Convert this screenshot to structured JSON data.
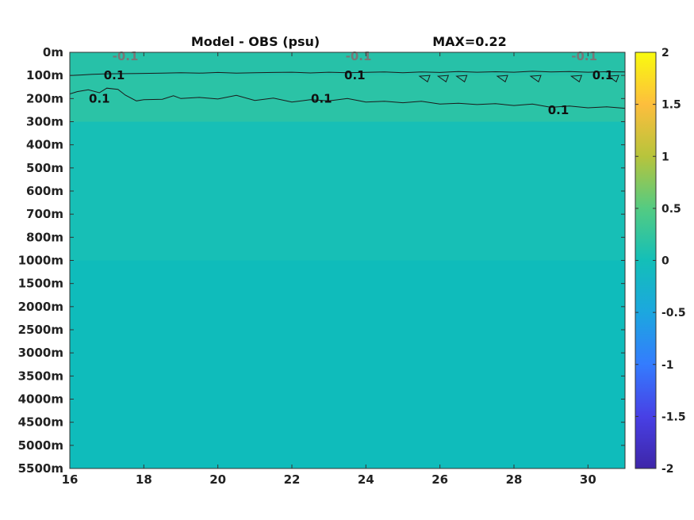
{
  "chart_data": {
    "type": "heatmap",
    "title": "Model - OBS (psu)",
    "max_label": "MAX=0.22",
    "x_ticks": [
      "16",
      "18",
      "20",
      "22",
      "24",
      "26",
      "28",
      "30"
    ],
    "x_tick_values": [
      16,
      18,
      20,
      22,
      24,
      26,
      28,
      30
    ],
    "xlim": [
      16,
      31
    ],
    "y_ticks": [
      "0m",
      "100m",
      "200m",
      "300m",
      "400m",
      "500m",
      "600m",
      "700m",
      "800m",
      "1000m",
      "1500m",
      "2000m",
      "2500m",
      "3000m",
      "3500m",
      "4000m",
      "4500m",
      "5000m",
      "5500m"
    ],
    "y_direction": "reversed",
    "colorbar": {
      "ticks": [
        "2",
        "1.5",
        "1",
        "0.5",
        "0",
        "-0.5",
        "-1",
        "-1.5",
        "-2"
      ],
      "tick_values": [
        2,
        1.5,
        1,
        0.5,
        0,
        -0.5,
        -1,
        -1.5,
        -2
      ],
      "range": [
        -2,
        2
      ],
      "colormap": "parula",
      "stops": [
        "#3e26a8",
        "#4840e5",
        "#347cfe",
        "#1ca7df",
        "#13bfb8",
        "#54cb82",
        "#b7c43c",
        "#fdbe3d",
        "#f9fb0e"
      ]
    },
    "field": {
      "background_color": "#14bcb8",
      "bands": [
        {
          "from_depth": "0m",
          "to_depth": "100m",
          "value": 0.15,
          "color": "#27c1a8"
        },
        {
          "from_depth": "100m",
          "to_depth": "300m",
          "value": 0.12,
          "color": "#2bc3a6"
        },
        {
          "from_depth": "300m",
          "to_depth": "1000m",
          "value": 0.03,
          "color": "#17bfb6"
        },
        {
          "from_depth": "1000m",
          "to_depth": "5500m",
          "value": 0.0,
          "color": "#0fbcbb"
        }
      ]
    },
    "contour_labels": [
      {
        "text": "0.1",
        "x": 17.2,
        "depth": "100m"
      },
      {
        "text": "0.1",
        "x": 16.8,
        "depth": "200m"
      },
      {
        "text": "0.1",
        "x": 23.7,
        "depth": "100m"
      },
      {
        "text": "0.1",
        "x": 22.8,
        "depth": "200m"
      },
      {
        "text": "0.1",
        "x": 30.4,
        "depth": "100m"
      },
      {
        "text": "0.1",
        "x": 29.2,
        "depth": "250m"
      }
    ],
    "negative_contour_labels": [
      {
        "text": "-0.1",
        "x": 17.5,
        "depth": "0m"
      },
      {
        "text": "-0.1",
        "x": 23.8,
        "depth": "0m"
      },
      {
        "text": "-0.1",
        "x": 29.9,
        "depth": "0m"
      }
    ],
    "contours": [
      {
        "level": 0.1,
        "points": [
          [
            16,
            100
          ],
          [
            16.3,
            98
          ],
          [
            16.6,
            95
          ],
          [
            17,
            93
          ],
          [
            17.8,
            92
          ],
          [
            18.5,
            90
          ],
          [
            19,
            88
          ],
          [
            19.5,
            90
          ],
          [
            20,
            87
          ],
          [
            20.5,
            90
          ],
          [
            21,
            88
          ],
          [
            21.5,
            87
          ],
          [
            22,
            86
          ],
          [
            22.5,
            89
          ],
          [
            23,
            86
          ],
          [
            23.5,
            88
          ],
          [
            24.5,
            85
          ],
          [
            25,
            88
          ],
          [
            25.5,
            85
          ],
          [
            26,
            87
          ],
          [
            26.5,
            83
          ],
          [
            27,
            86
          ],
          [
            27.5,
            84
          ],
          [
            28,
            86
          ],
          [
            28.5,
            82
          ],
          [
            29,
            85
          ],
          [
            29.5,
            83
          ],
          [
            30,
            86
          ],
          [
            30.5,
            84
          ],
          [
            31,
            85
          ]
        ]
      },
      {
        "level": 0.1,
        "points": [
          [
            16,
            180
          ],
          [
            16.2,
            170
          ],
          [
            16.5,
            162
          ],
          [
            16.8,
            175
          ],
          [
            17,
            155
          ],
          [
            17.3,
            160
          ],
          [
            17.5,
            185
          ],
          [
            17.8,
            210
          ],
          [
            18,
            205
          ],
          [
            18.5,
            203
          ],
          [
            18.8,
            188
          ],
          [
            19,
            200
          ],
          [
            19.5,
            195
          ],
          [
            20,
            202
          ],
          [
            20.5,
            186
          ],
          [
            21,
            208
          ],
          [
            21.5,
            198
          ],
          [
            22,
            215
          ],
          [
            22.5,
            205
          ],
          [
            23,
            210
          ],
          [
            23.5,
            200
          ],
          [
            24,
            215
          ],
          [
            24.5,
            212
          ],
          [
            25,
            218
          ],
          [
            25.5,
            212
          ],
          [
            26,
            224
          ],
          [
            26.5,
            220
          ],
          [
            27,
            226
          ],
          [
            27.5,
            222
          ],
          [
            28,
            230
          ],
          [
            28.5,
            224
          ],
          [
            29,
            238
          ],
          [
            29.5,
            232
          ],
          [
            30,
            240
          ],
          [
            30.5,
            236
          ],
          [
            31,
            242
          ]
        ]
      }
    ],
    "small_contours": [
      {
        "level": 0.1,
        "x": 25.6,
        "depth": "100m"
      },
      {
        "level": 0.1,
        "x": 26.1,
        "depth": "100m"
      },
      {
        "level": 0.1,
        "x": 26.6,
        "depth": "100m"
      },
      {
        "level": 0.1,
        "x": 27.7,
        "depth": "100m"
      },
      {
        "level": 0.1,
        "x": 28.6,
        "depth": "100m"
      },
      {
        "level": 0.1,
        "x": 29.7,
        "depth": "100m"
      },
      {
        "level": 0.1,
        "x": 30.7,
        "depth": "100m"
      }
    ]
  }
}
